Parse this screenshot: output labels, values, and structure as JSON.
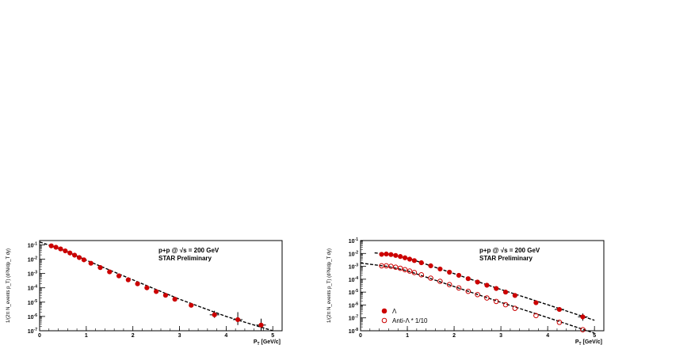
{
  "chart_data": [
    {
      "type": "scatter",
      "title": "",
      "xlabel": "P_T [GeV/c]",
      "ylabel": "1/(2π N_events p_T) (d²N/dp_T dy)",
      "xlim": [
        0,
        5.2
      ],
      "ylim": [
        1e-07,
        0.2
      ],
      "yscale": "log",
      "x_ticks": [
        "0",
        "1",
        "2",
        "3",
        "4",
        "5"
      ],
      "y_ticks": [
        "10^-1",
        "10^-2",
        "10^-3",
        "10^-4",
        "10^-5",
        "10^-6",
        "10^-7"
      ],
      "annotations": [
        "p+p @ √s = 200 GeV",
        "STAR Preliminary"
      ],
      "series": [
        {
          "name": "",
          "color": "#cc0000",
          "marker": "filled-circle",
          "x": [
            0.25,
            0.35,
            0.45,
            0.55,
            0.65,
            0.75,
            0.85,
            0.95,
            1.1,
            1.3,
            1.5,
            1.7,
            1.9,
            2.1,
            2.3,
            2.5,
            2.7,
            2.9,
            3.25,
            3.75,
            4.25,
            4.75
          ],
          "y": [
            0.085,
            0.068,
            0.052,
            0.038,
            0.027,
            0.019,
            0.013,
            0.009,
            0.0052,
            0.0026,
            0.0013,
            0.00068,
            0.00036,
            0.00019,
            0.0001,
            5.5e-05,
            3e-05,
            1.6e-05,
            6e-06,
            1.3e-06,
            6e-07,
            2.5e-07
          ],
          "yerr_up": [
            0,
            0,
            0,
            0,
            0,
            0,
            0,
            0,
            0,
            0,
            0,
            0,
            0,
            0,
            0,
            0,
            0,
            0,
            0,
            1.2e-06,
            1.4e-06,
            4.5e-07
          ],
          "yerr_down": [
            0,
            0,
            0,
            0,
            0,
            0,
            0,
            0,
            0,
            0,
            0,
            0,
            0,
            0,
            0,
            0,
            0,
            0,
            0,
            5e-07,
            3.5e-07,
            1.5e-07
          ]
        },
        {
          "name": "",
          "color": "#000000",
          "style": "dashed-fit",
          "x": [
            0.0,
            0.5,
            1.0,
            2.0,
            3.0,
            4.0,
            5.0
          ],
          "y": [
            0.16,
            0.045,
            0.0085,
            0.00036,
            1.6e-05,
            1e-06,
            1e-07
          ]
        }
      ]
    },
    {
      "type": "scatter",
      "title": "",
      "xlabel": "P_T [GeV/c]",
      "ylabel": "1/(2π N_events p_T) (d²N/dp_T dy)",
      "xlim": [
        0,
        5.2
      ],
      "ylim": [
        1e-08,
        0.1
      ],
      "yscale": "log",
      "x_ticks": [
        "0",
        "1",
        "2",
        "3",
        "4",
        "5"
      ],
      "y_ticks": [
        "10^-1",
        "10^-2",
        "10^-3",
        "10^-4",
        "10^-5",
        "10^-6",
        "10^-7",
        "10^-8"
      ],
      "annotations": [
        "p+p @ √s = 200 GeV",
        "STAR Preliminary"
      ],
      "series": [
        {
          "name": "Λ",
          "color": "#cc0000",
          "marker": "filled-circle",
          "x": [
            0.45,
            0.55,
            0.65,
            0.75,
            0.85,
            0.95,
            1.05,
            1.15,
            1.3,
            1.5,
            1.7,
            1.9,
            2.1,
            2.3,
            2.5,
            2.7,
            2.9,
            3.1,
            3.3,
            3.75,
            4.25,
            4.75
          ],
          "y": [
            0.0085,
            0.009,
            0.0082,
            0.007,
            0.0058,
            0.0046,
            0.0036,
            0.0028,
            0.0019,
            0.0011,
            0.00062,
            0.00035,
            0.0002,
            0.00011,
            6e-05,
            3.4e-05,
            1.9e-05,
            1e-05,
            5.5e-06,
            1.5e-06,
            4.5e-07,
            1.2e-07
          ],
          "yerr_up": [
            0,
            0,
            0,
            0,
            0,
            0,
            0,
            0,
            0,
            0,
            0,
            0,
            0,
            0,
            0,
            0,
            0,
            0,
            0,
            0,
            2e-07,
            1e-07
          ],
          "yerr_down": [
            0,
            0,
            0,
            0,
            0,
            0,
            0,
            0,
            0,
            0,
            0,
            0,
            0,
            0,
            0,
            0,
            0,
            0,
            0,
            0,
            1.5e-07,
            6e-08
          ]
        },
        {
          "name": "Anti-Λ * 1/10",
          "color": "#cc0000",
          "marker": "open-circle",
          "x": [
            0.45,
            0.55,
            0.65,
            0.75,
            0.85,
            0.95,
            1.05,
            1.15,
            1.3,
            1.5,
            1.7,
            1.9,
            2.1,
            2.3,
            2.5,
            2.7,
            2.9,
            3.1,
            3.3,
            3.75,
            4.25,
            4.75
          ],
          "y": [
            0.0011,
            0.0011,
            0.001,
            0.00085,
            0.0007,
            0.00055,
            0.00043,
            0.00033,
            0.00022,
            0.00012,
            6.8e-05,
            3.8e-05,
            2.1e-05,
            1.15e-05,
            6.4e-06,
            3.5e-06,
            1.9e-06,
            1.05e-06,
            5.5e-07,
            1.5e-07,
            4.5e-08,
            1.2e-08
          ]
        },
        {
          "name": "",
          "color": "#000000",
          "style": "dashed-fit",
          "x": [
            0.3,
            0.6,
            1.0,
            2.0,
            3.0,
            4.0,
            5.0
          ],
          "y": [
            0.011,
            0.0088,
            0.0045,
            0.00027,
            1.6e-05,
            1.05e-06,
            6.5e-08
          ]
        },
        {
          "name": "",
          "color": "#000000",
          "style": "dashed-fit",
          "x": [
            0.0,
            0.6,
            1.0,
            2.0,
            3.0,
            4.0,
            5.0
          ],
          "y": [
            0.0018,
            0.00095,
            0.00045,
            2.7e-05,
            1.6e-06,
            1.05e-07,
            6.5e-09
          ]
        }
      ]
    }
  ]
}
